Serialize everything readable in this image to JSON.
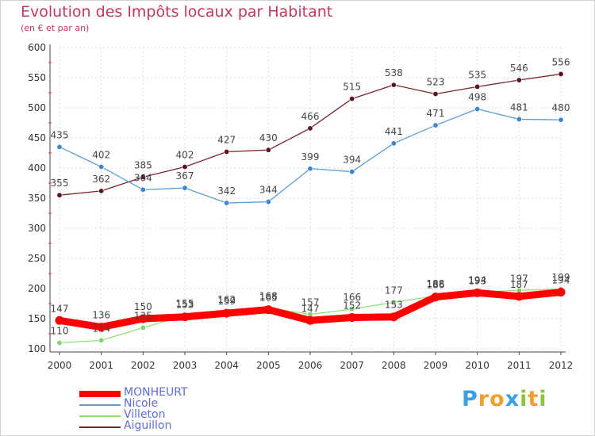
{
  "chart_data": {
    "type": "line",
    "title": "Evolution des Impôts locaux par Habitant",
    "subtitle": "(en € et par an)",
    "xlabel": "",
    "ylabel": "",
    "ylim": [
      100,
      600
    ],
    "yticks": [
      100,
      150,
      200,
      250,
      300,
      350,
      400,
      450,
      500,
      550,
      600
    ],
    "x": [
      "2000",
      "2001",
      "2002",
      "2003",
      "2004",
      "2005",
      "2006",
      "2007",
      "2008",
      "2009",
      "2010",
      "2011",
      "2012"
    ],
    "grid": true,
    "legend_position": "bottom-left",
    "series": [
      {
        "name": "Aiguillon",
        "color": "#7a2430",
        "marker": "#5a1420",
        "values": [
          355,
          362,
          385,
          402,
          427,
          430,
          466,
          515,
          538,
          523,
          535,
          546,
          556
        ]
      },
      {
        "name": "Nicole",
        "color": "#5d9ed6",
        "marker": "#3f86cc",
        "values": [
          435,
          402,
          364,
          367,
          342,
          344,
          399,
          394,
          441,
          471,
          498,
          481,
          480
        ]
      },
      {
        "name": "Villeton",
        "color": "#8fe07a",
        "marker": "#7fd36a",
        "values": [
          110,
          114,
          135,
          155,
          162,
          168,
          157,
          166,
          177,
          188,
          194,
          197,
          199
        ]
      },
      {
        "name": "MONHEURT",
        "color": "#ff0000",
        "marker": "#ff0000",
        "values": [
          147,
          136,
          150,
          153,
          159,
          165,
          147,
          152,
          153,
          186,
          193,
          187,
          194
        ]
      }
    ]
  },
  "legend": {
    "items": [
      {
        "name": "MONHEURT",
        "color": "#ff0000"
      },
      {
        "name": "Nicole",
        "color": "#5d9ed6"
      },
      {
        "name": "Villeton",
        "color": "#8fe07a"
      },
      {
        "name": "Aiguillon",
        "color": "#7a2430"
      }
    ]
  },
  "brand": {
    "letters": [
      "P",
      "r",
      "o",
      "x",
      "i",
      "t",
      "i"
    ],
    "colors": [
      "#3aa0e0",
      "#f0a030",
      "#f0a030",
      "#3aa0e0",
      "#8cc63f",
      "#f0a030",
      "#8cc63f"
    ]
  }
}
